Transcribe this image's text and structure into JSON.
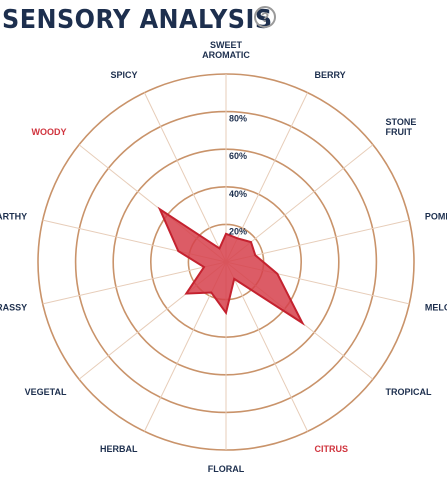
{
  "header": {
    "title": "SENSORY ANALYSIS",
    "help_icon": "question-circle-icon",
    "help_glyph": "?"
  },
  "colors": {
    "title": "#1d2f4e",
    "grid": "#c9936a",
    "fill": "#d63f4b",
    "stroke": "#c4222f",
    "label": "#1d2f4e",
    "highlight_label": "#d0343e"
  },
  "chart_data": {
    "type": "radar",
    "title": "",
    "categories": [
      {
        "label": [
          "SWEET",
          "AROMATIC"
        ],
        "highlight": false
      },
      {
        "label": [
          "BERRY"
        ],
        "highlight": false
      },
      {
        "label": [
          "STONE",
          "FRUIT"
        ],
        "highlight": false
      },
      {
        "label": [
          "POMME"
        ],
        "highlight": false
      },
      {
        "label": [
          "MELON"
        ],
        "highlight": false
      },
      {
        "label": [
          "TROPICAL"
        ],
        "highlight": false
      },
      {
        "label": [
          "CITRUS"
        ],
        "highlight": true
      },
      {
        "label": [
          "FLORAL"
        ],
        "highlight": false
      },
      {
        "label": [
          "HERBAL"
        ],
        "highlight": false
      },
      {
        "label": [
          "VEGETAL"
        ],
        "highlight": false
      },
      {
        "label": [
          "GRASSY"
        ],
        "highlight": false
      },
      {
        "label": [
          "EARTHY"
        ],
        "highlight": false
      },
      {
        "label": [
          "WOODY"
        ],
        "highlight": true
      },
      {
        "label": [
          "SPICY"
        ],
        "highlight": false
      }
    ],
    "values": [
      15,
      14,
      17,
      16,
      28,
      52,
      10,
      27,
      18,
      27,
      12,
      26,
      45,
      8
    ],
    "ticks": [
      20,
      40,
      60,
      80
    ],
    "tick_labels": [
      "20%",
      "40%",
      "60%",
      "80%"
    ],
    "ylim": [
      0,
      100
    ],
    "grid": true,
    "legend": "none"
  }
}
